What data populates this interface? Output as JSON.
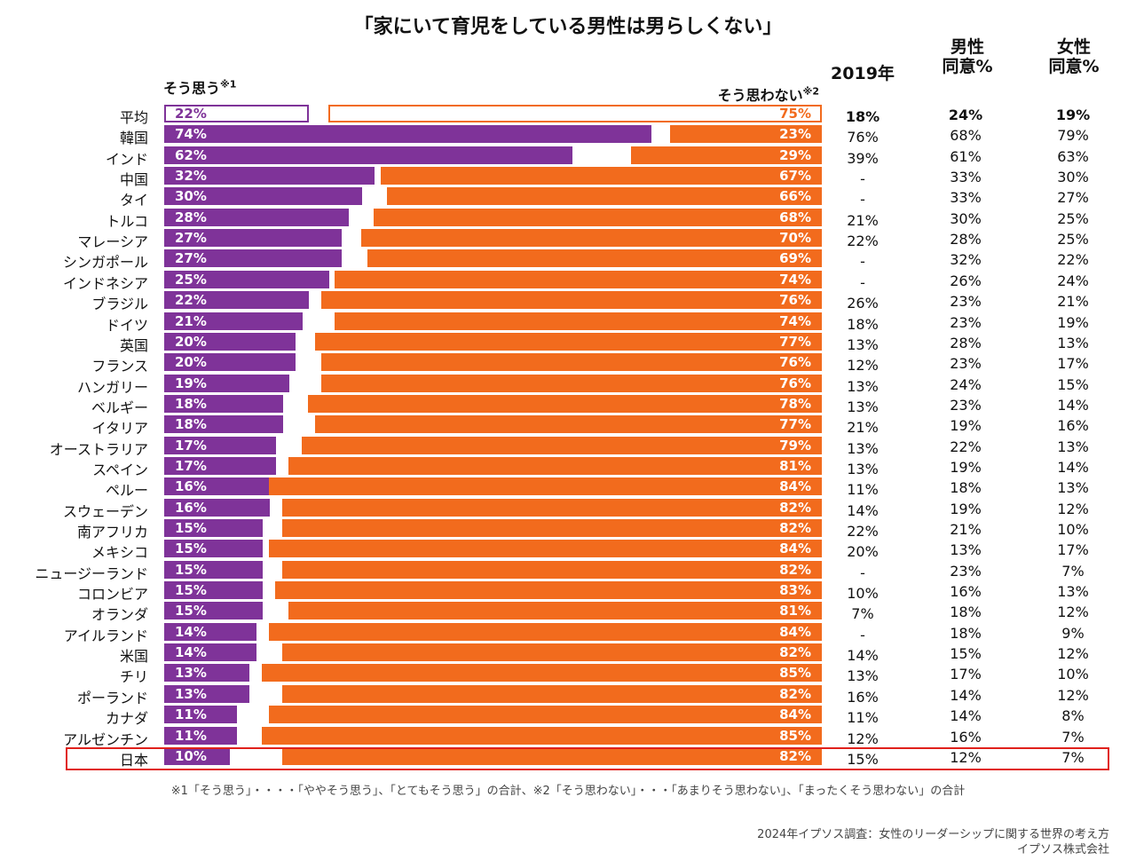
{
  "chart_data": {
    "type": "bar",
    "title": "「家にいて育児をしている男性は男らしくない」",
    "series": [
      {
        "name": "そう思う※1",
        "color": "#7f3399"
      },
      {
        "name": "そう思わない※2",
        "color": "#f26b1d"
      }
    ],
    "table_headers": {
      "y2019": "2019年",
      "male": "男性\n同意%",
      "female": "女性\n同意%"
    },
    "rows": [
      {
        "country": "平均",
        "agree": 22,
        "disagree": 75,
        "y2019": "18%",
        "male": "24%",
        "female": "19%"
      },
      {
        "country": "韓国",
        "agree": 74,
        "disagree": 23,
        "y2019": "76%",
        "male": "68%",
        "female": "79%"
      },
      {
        "country": "インド",
        "agree": 62,
        "disagree": 29,
        "y2019": "39%",
        "male": "61%",
        "female": "63%"
      },
      {
        "country": "中国",
        "agree": 32,
        "disagree": 67,
        "y2019": "-",
        "male": "33%",
        "female": "30%"
      },
      {
        "country": "タイ",
        "agree": 30,
        "disagree": 66,
        "y2019": "-",
        "male": "33%",
        "female": "27%"
      },
      {
        "country": "トルコ",
        "agree": 28,
        "disagree": 68,
        "y2019": "21%",
        "male": "30%",
        "female": "25%"
      },
      {
        "country": "マレーシア",
        "agree": 27,
        "disagree": 70,
        "y2019": "22%",
        "male": "28%",
        "female": "25%"
      },
      {
        "country": "シンガポール",
        "agree": 27,
        "disagree": 69,
        "y2019": "-",
        "male": "32%",
        "female": "22%"
      },
      {
        "country": "インドネシア",
        "agree": 25,
        "disagree": 74,
        "y2019": "-",
        "male": "26%",
        "female": "24%"
      },
      {
        "country": "ブラジル",
        "agree": 22,
        "disagree": 76,
        "y2019": "26%",
        "male": "23%",
        "female": "21%"
      },
      {
        "country": "ドイツ",
        "agree": 21,
        "disagree": 74,
        "y2019": "18%",
        "male": "23%",
        "female": "19%"
      },
      {
        "country": "英国",
        "agree": 20,
        "disagree": 77,
        "y2019": "13%",
        "male": "28%",
        "female": "13%"
      },
      {
        "country": "フランス",
        "agree": 20,
        "disagree": 76,
        "y2019": "12%",
        "male": "23%",
        "female": "17%"
      },
      {
        "country": "ハンガリー",
        "agree": 19,
        "disagree": 76,
        "y2019": "13%",
        "male": "24%",
        "female": "15%"
      },
      {
        "country": "ベルギー",
        "agree": 18,
        "disagree": 78,
        "y2019": "13%",
        "male": "23%",
        "female": "14%"
      },
      {
        "country": "イタリア",
        "agree": 18,
        "disagree": 77,
        "y2019": "21%",
        "male": "19%",
        "female": "16%"
      },
      {
        "country": "オーストラリア",
        "agree": 17,
        "disagree": 79,
        "y2019": "13%",
        "male": "22%",
        "female": "13%"
      },
      {
        "country": "スペイン",
        "agree": 17,
        "disagree": 81,
        "y2019": "13%",
        "male": "19%",
        "female": "14%"
      },
      {
        "country": "ペルー",
        "agree": 16,
        "disagree": 84,
        "y2019": "11%",
        "male": "18%",
        "female": "13%"
      },
      {
        "country": "スウェーデン",
        "agree": 16,
        "disagree": 82,
        "y2019": "14%",
        "male": "19%",
        "female": "12%"
      },
      {
        "country": "南アフリカ",
        "agree": 15,
        "disagree": 82,
        "y2019": "22%",
        "male": "21%",
        "female": "10%"
      },
      {
        "country": "メキシコ",
        "agree": 15,
        "disagree": 84,
        "y2019": "20%",
        "male": "13%",
        "female": "17%"
      },
      {
        "country": "ニュージーランド",
        "agree": 15,
        "disagree": 82,
        "y2019": "-",
        "male": "23%",
        "female": "7%"
      },
      {
        "country": "コロンビア",
        "agree": 15,
        "disagree": 83,
        "y2019": "10%",
        "male": "16%",
        "female": "13%"
      },
      {
        "country": "オランダ",
        "agree": 15,
        "disagree": 81,
        "y2019": "7%",
        "male": "18%",
        "female": "12%"
      },
      {
        "country": "アイルランド",
        "agree": 14,
        "disagree": 84,
        "y2019": "-",
        "male": "18%",
        "female": "9%"
      },
      {
        "country": "米国",
        "agree": 14,
        "disagree": 82,
        "y2019": "14%",
        "male": "15%",
        "female": "12%"
      },
      {
        "country": "チリ",
        "agree": 13,
        "disagree": 85,
        "y2019": "13%",
        "male": "17%",
        "female": "10%"
      },
      {
        "country": "ポーランド",
        "agree": 13,
        "disagree": 82,
        "y2019": "16%",
        "male": "14%",
        "female": "12%"
      },
      {
        "country": "カナダ",
        "agree": 11,
        "disagree": 84,
        "y2019": "11%",
        "male": "14%",
        "female": "8%"
      },
      {
        "country": "アルゼンチン",
        "agree": 11,
        "disagree": 85,
        "y2019": "12%",
        "male": "16%",
        "female": "7%"
      },
      {
        "country": "日本",
        "agree": 10,
        "disagree": 82,
        "y2019": "15%",
        "male": "12%",
        "female": "7%"
      }
    ],
    "highlight": "日本",
    "footnote": "※1「そう思う」・・・・「ややそう思う」、「とてもそう思う」の合計、※2「そう思わない」・・・「あまりそう思わない」、「まったくそう思わない」の合計",
    "source": [
      "2024年イプソス調査：女性のリーダーシップに関する世界の考え方",
      "イプソス株式会社"
    ]
  }
}
